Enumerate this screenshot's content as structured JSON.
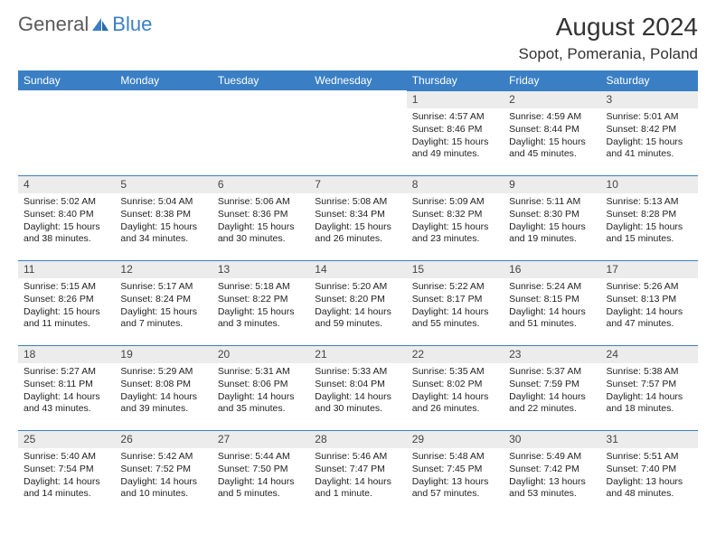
{
  "logo": {
    "general": "General",
    "blue": "Blue"
  },
  "title": "August 2024",
  "location": "Sopot, Pomerania, Poland",
  "weekdays": [
    "Sunday",
    "Monday",
    "Tuesday",
    "Wednesday",
    "Thursday",
    "Friday",
    "Saturday"
  ],
  "colors": {
    "header_bg": "#3a7fc4",
    "header_text": "#ffffff",
    "daynum_bg": "#ececec",
    "daynum_border": "#3a7fc4",
    "body_text": "#222222",
    "title_color": "#333333",
    "logo_gray": "#5a5a5a",
    "logo_blue": "#3a7fc4"
  },
  "typography": {
    "title_fontsize": 28,
    "location_fontsize": 17,
    "weekday_fontsize": 12,
    "daynum_fontsize": 12,
    "body_fontsize": 10.5
  },
  "layout": {
    "cols": 7,
    "rows": 5,
    "first_weekday_index": 4
  },
  "days": [
    {
      "n": 1,
      "sunrise": "4:57 AM",
      "sunset": "8:46 PM",
      "daylight": "15 hours and 49 minutes."
    },
    {
      "n": 2,
      "sunrise": "4:59 AM",
      "sunset": "8:44 PM",
      "daylight": "15 hours and 45 minutes."
    },
    {
      "n": 3,
      "sunrise": "5:01 AM",
      "sunset": "8:42 PM",
      "daylight": "15 hours and 41 minutes."
    },
    {
      "n": 4,
      "sunrise": "5:02 AM",
      "sunset": "8:40 PM",
      "daylight": "15 hours and 38 minutes."
    },
    {
      "n": 5,
      "sunrise": "5:04 AM",
      "sunset": "8:38 PM",
      "daylight": "15 hours and 34 minutes."
    },
    {
      "n": 6,
      "sunrise": "5:06 AM",
      "sunset": "8:36 PM",
      "daylight": "15 hours and 30 minutes."
    },
    {
      "n": 7,
      "sunrise": "5:08 AM",
      "sunset": "8:34 PM",
      "daylight": "15 hours and 26 minutes."
    },
    {
      "n": 8,
      "sunrise": "5:09 AM",
      "sunset": "8:32 PM",
      "daylight": "15 hours and 23 minutes."
    },
    {
      "n": 9,
      "sunrise": "5:11 AM",
      "sunset": "8:30 PM",
      "daylight": "15 hours and 19 minutes."
    },
    {
      "n": 10,
      "sunrise": "5:13 AM",
      "sunset": "8:28 PM",
      "daylight": "15 hours and 15 minutes."
    },
    {
      "n": 11,
      "sunrise": "5:15 AM",
      "sunset": "8:26 PM",
      "daylight": "15 hours and 11 minutes."
    },
    {
      "n": 12,
      "sunrise": "5:17 AM",
      "sunset": "8:24 PM",
      "daylight": "15 hours and 7 minutes."
    },
    {
      "n": 13,
      "sunrise": "5:18 AM",
      "sunset": "8:22 PM",
      "daylight": "15 hours and 3 minutes."
    },
    {
      "n": 14,
      "sunrise": "5:20 AM",
      "sunset": "8:20 PM",
      "daylight": "14 hours and 59 minutes."
    },
    {
      "n": 15,
      "sunrise": "5:22 AM",
      "sunset": "8:17 PM",
      "daylight": "14 hours and 55 minutes."
    },
    {
      "n": 16,
      "sunrise": "5:24 AM",
      "sunset": "8:15 PM",
      "daylight": "14 hours and 51 minutes."
    },
    {
      "n": 17,
      "sunrise": "5:26 AM",
      "sunset": "8:13 PM",
      "daylight": "14 hours and 47 minutes."
    },
    {
      "n": 18,
      "sunrise": "5:27 AM",
      "sunset": "8:11 PM",
      "daylight": "14 hours and 43 minutes."
    },
    {
      "n": 19,
      "sunrise": "5:29 AM",
      "sunset": "8:08 PM",
      "daylight": "14 hours and 39 minutes."
    },
    {
      "n": 20,
      "sunrise": "5:31 AM",
      "sunset": "8:06 PM",
      "daylight": "14 hours and 35 minutes."
    },
    {
      "n": 21,
      "sunrise": "5:33 AM",
      "sunset": "8:04 PM",
      "daylight": "14 hours and 30 minutes."
    },
    {
      "n": 22,
      "sunrise": "5:35 AM",
      "sunset": "8:02 PM",
      "daylight": "14 hours and 26 minutes."
    },
    {
      "n": 23,
      "sunrise": "5:37 AM",
      "sunset": "7:59 PM",
      "daylight": "14 hours and 22 minutes."
    },
    {
      "n": 24,
      "sunrise": "5:38 AM",
      "sunset": "7:57 PM",
      "daylight": "14 hours and 18 minutes."
    },
    {
      "n": 25,
      "sunrise": "5:40 AM",
      "sunset": "7:54 PM",
      "daylight": "14 hours and 14 minutes."
    },
    {
      "n": 26,
      "sunrise": "5:42 AM",
      "sunset": "7:52 PM",
      "daylight": "14 hours and 10 minutes."
    },
    {
      "n": 27,
      "sunrise": "5:44 AM",
      "sunset": "7:50 PM",
      "daylight": "14 hours and 5 minutes."
    },
    {
      "n": 28,
      "sunrise": "5:46 AM",
      "sunset": "7:47 PM",
      "daylight": "14 hours and 1 minute."
    },
    {
      "n": 29,
      "sunrise": "5:48 AM",
      "sunset": "7:45 PM",
      "daylight": "13 hours and 57 minutes."
    },
    {
      "n": 30,
      "sunrise": "5:49 AM",
      "sunset": "7:42 PM",
      "daylight": "13 hours and 53 minutes."
    },
    {
      "n": 31,
      "sunrise": "5:51 AM",
      "sunset": "7:40 PM",
      "daylight": "13 hours and 48 minutes."
    }
  ]
}
